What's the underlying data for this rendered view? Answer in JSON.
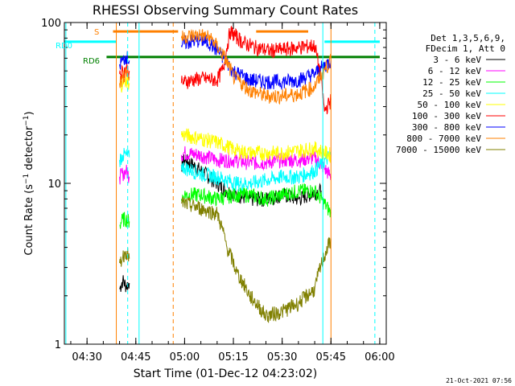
{
  "chart_data": {
    "type": "line",
    "title": "RHESSI Observing Summary Count Rates",
    "xlabel": "Start Time (01-Dec-12 04:23:02)",
    "ylabel": "Count Rate (s⁻¹ detector⁻¹)",
    "ylabel_parts": [
      "Count Rate (s",
      "−1",
      " detector",
      "−1",
      ")"
    ],
    "yscale": "log",
    "x_ticks": [
      "04:30",
      "04:45",
      "05:00",
      "05:15",
      "05:30",
      "05:45",
      "06:00"
    ],
    "y_ticks": [
      "1",
      "10",
      "100"
    ],
    "xlim": [
      "04:23:02",
      "06:02:00"
    ],
    "ylim": [
      1,
      100
    ],
    "timestamp": "21-Oct-2021 07:56",
    "legend": {
      "position": "right",
      "header": [
        "Det 1,3,5,6,9,",
        "FDecim 1, Att 0"
      ],
      "entries": [
        {
          "label": "3 - 6 keV",
          "color": "#000000"
        },
        {
          "label": "6 - 12 keV",
          "color": "#ff00ff"
        },
        {
          "label": "12 - 25 keV",
          "color": "#00ff00"
        },
        {
          "label": "25 - 50 keV",
          "color": "#00ffff"
        },
        {
          "label": "50 - 100 keV",
          "color": "#ffff00"
        },
        {
          "label": "100 - 300 keV",
          "color": "#ff0000"
        },
        {
          "label": "300 - 800 keV",
          "color": "#0000ff"
        },
        {
          "label": "800 - 7000 keV",
          "color": "#ff8000"
        },
        {
          "label": "7000 - 15000 keV",
          "color": "#808000"
        }
      ]
    },
    "flags": [
      {
        "label": "S",
        "color": "#ff8000",
        "y": 88,
        "segments": [
          [
            "04:38",
            "04:58"
          ],
          [
            "05:22",
            "05:38"
          ]
        ]
      },
      {
        "label": "RD0",
        "color": "#00ffff",
        "y": 76,
        "segments": [
          [
            "04:23",
            "04:39"
          ],
          [
            "05:43",
            "06:00"
          ]
        ]
      },
      {
        "label": "RD6",
        "color": "#008000",
        "y": 61,
        "segments": [
          [
            "04:36",
            "06:00"
          ]
        ]
      }
    ],
    "vlines": [
      {
        "x": "04:23:30",
        "color": "#00ffff",
        "style": "solid"
      },
      {
        "x": "04:39:00",
        "color": "#ff8000",
        "style": "solid"
      },
      {
        "x": "04:42:30",
        "color": "#00ffff",
        "style": "dashed"
      },
      {
        "x": "04:46:00",
        "color": "#00ffff",
        "style": "solid"
      },
      {
        "x": "04:56:30",
        "color": "#ff8000",
        "style": "dashed"
      },
      {
        "x": "05:42:30",
        "color": "#00ffff",
        "style": "solid"
      },
      {
        "x": "05:45:00",
        "color": "#ff8000",
        "style": "solid"
      },
      {
        "x": "05:58:30",
        "color": "#00ffff",
        "style": "dashed"
      }
    ],
    "series": [
      {
        "name": "3 - 6 keV",
        "color": "#000000",
        "x": [
          "04:40",
          "04:41",
          "04:42",
          "04:43",
          "04:59",
          "05:00",
          "05:05",
          "05:10",
          "05:13",
          "05:16",
          "05:20",
          "05:25",
          "05:30",
          "05:35",
          "05:40",
          "05:42"
        ],
        "y": [
          2.2,
          2.5,
          2.3,
          2.4,
          13,
          14,
          12,
          10,
          9,
          8.5,
          8,
          8,
          8.5,
          8,
          8.8,
          9
        ]
      },
      {
        "name": "6 - 12 keV",
        "color": "#ff00ff",
        "x": [
          "04:40",
          "04:41",
          "04:42",
          "04:43",
          "04:59",
          "05:00",
          "05:05",
          "05:10",
          "05:15",
          "05:20",
          "05:25",
          "05:30",
          "05:35",
          "05:40",
          "05:45"
        ],
        "y": [
          11,
          11.5,
          12,
          11,
          15,
          15.5,
          15,
          14,
          14,
          13.5,
          13.5,
          14,
          14,
          14.5,
          11
        ]
      },
      {
        "name": "12 - 25 keV",
        "color": "#00ff00",
        "x": [
          "04:40",
          "04:41",
          "04:42",
          "04:43",
          "04:59",
          "05:00",
          "05:05",
          "05:10",
          "05:15",
          "05:20",
          "05:25",
          "05:30",
          "05:35",
          "05:40",
          "05:45"
        ],
        "y": [
          5.5,
          6,
          6,
          5.8,
          8,
          8.5,
          8.5,
          8,
          8.5,
          8.5,
          8,
          8.5,
          9,
          9,
          6.5
        ]
      },
      {
        "name": "25 - 50 keV",
        "color": "#00ffff",
        "x": [
          "04:40",
          "04:41",
          "04:42",
          "04:43",
          "04:59",
          "05:00",
          "05:05",
          "05:10",
          "05:13",
          "05:16",
          "05:20",
          "05:25",
          "05:30",
          "05:35",
          "05:40",
          "05:45"
        ],
        "y": [
          14,
          15,
          15,
          14.5,
          13,
          12.5,
          11.5,
          11,
          10.5,
          10,
          10,
          10.5,
          11,
          11,
          12,
          15
        ]
      },
      {
        "name": "50 - 100 keV",
        "color": "#ffff00",
        "x": [
          "04:40",
          "04:41",
          "04:42",
          "04:43",
          "04:59",
          "05:00",
          "05:05",
          "05:10",
          "05:13",
          "05:16",
          "05:20",
          "05:25",
          "05:30",
          "05:35",
          "05:40",
          "05:45"
        ],
        "y": [
          40,
          42,
          44,
          42,
          20,
          20,
          19,
          18,
          17,
          16,
          15.5,
          15.5,
          15.5,
          16,
          16.5,
          15
        ]
      },
      {
        "name": "100 - 300 keV",
        "color": "#ff0000",
        "x": [
          "04:40",
          "04:41",
          "04:42",
          "04:43",
          "04:59",
          "05:00",
          "05:05",
          "05:10",
          "05:12",
          "05:14",
          "05:18",
          "05:22",
          "05:26",
          "05:30",
          "05:35",
          "05:40",
          "05:43",
          "05:45"
        ],
        "y": [
          48,
          50,
          52,
          50,
          42,
          43,
          45,
          44,
          52,
          88,
          75,
          70,
          67,
          68,
          70,
          72,
          28,
          33
        ]
      },
      {
        "name": "300 - 800 keV",
        "color": "#0000ff",
        "x": [
          "04:40",
          "04:41",
          "04:42",
          "04:43",
          "04:59",
          "05:00",
          "05:05",
          "05:08",
          "05:12",
          "05:15",
          "05:20",
          "05:25",
          "05:30",
          "05:35",
          "05:40",
          "05:45"
        ],
        "y": [
          55,
          58,
          62,
          58,
          72,
          75,
          78,
          74,
          60,
          50,
          44,
          43,
          43,
          44,
          48,
          58
        ]
      },
      {
        "name": "800 - 7000 keV",
        "color": "#ff8000",
        "x": [
          "04:40",
          "04:41",
          "04:42",
          "04:43",
          "04:59",
          "05:00",
          "05:05",
          "05:08",
          "05:12",
          "05:15",
          "05:20",
          "05:25",
          "05:30",
          "05:35",
          "05:40",
          "05:45"
        ],
        "y": [
          42,
          45,
          50,
          46,
          80,
          82,
          84,
          80,
          62,
          46,
          38,
          35,
          35,
          36,
          40,
          58
        ]
      },
      {
        "name": "7000 - 15000 keV",
        "color": "#808000",
        "x": [
          "04:40",
          "04:41",
          "04:42",
          "04:43",
          "04:59",
          "05:00",
          "05:05",
          "05:10",
          "05:13",
          "05:16",
          "05:20",
          "05:25",
          "05:30",
          "05:35",
          "05:40",
          "05:44",
          "05:45"
        ],
        "y": [
          3.2,
          3.5,
          3.8,
          3.4,
          7.5,
          7.5,
          7,
          6.5,
          4,
          2.8,
          2,
          1.5,
          1.6,
          1.8,
          2.2,
          4,
          4.5
        ]
      }
    ]
  }
}
